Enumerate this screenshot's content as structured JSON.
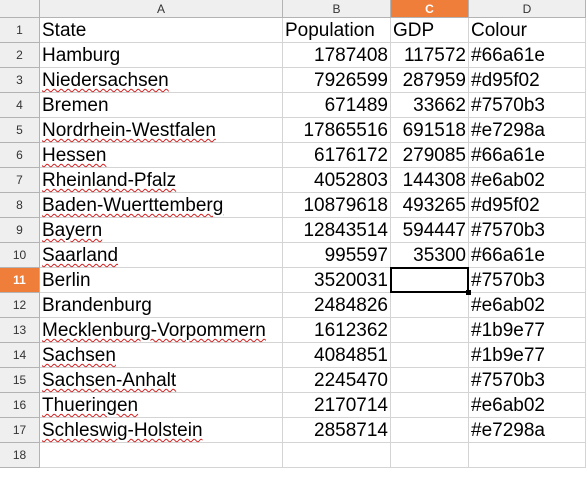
{
  "columns": [
    "A",
    "B",
    "C",
    "D"
  ],
  "selected_column": "C",
  "rows": [
    "1",
    "2",
    "3",
    "4",
    "5",
    "6",
    "7",
    "8",
    "9",
    "10",
    "11",
    "12",
    "13",
    "14",
    "15",
    "16",
    "17",
    "18"
  ],
  "selected_row": "11",
  "header": {
    "state": "State",
    "population": "Population",
    "gdp": "GDP",
    "colour": "Colour"
  },
  "data": [
    {
      "state": "Hamburg",
      "population": "1787408",
      "gdp": "117572",
      "colour": "#66a61e"
    },
    {
      "state": "Niedersachsen",
      "population": "7926599",
      "gdp": "287959",
      "colour": "#d95f02"
    },
    {
      "state": "Bremen",
      "population": "671489",
      "gdp": "33662",
      "colour": "#7570b3"
    },
    {
      "state": "Nordrhein-Westfalen",
      "population": "17865516",
      "gdp": "691518",
      "colour": "#e7298a"
    },
    {
      "state": "Hessen",
      "population": "6176172",
      "gdp": "279085",
      "colour": "#66a61e"
    },
    {
      "state": "Rheinland-Pfalz",
      "population": "4052803",
      "gdp": "144308",
      "colour": "#e6ab02"
    },
    {
      "state": "Baden-Wuerttemberg",
      "population": "10879618",
      "gdp": "493265",
      "colour": "#d95f02"
    },
    {
      "state": "Bayern",
      "population": "12843514",
      "gdp": "594447",
      "colour": "#7570b3"
    },
    {
      "state": "Saarland",
      "population": "995597",
      "gdp": "35300",
      "colour": "#66a61e"
    },
    {
      "state": "Berlin",
      "population": "3520031",
      "gdp": "",
      "colour": "#7570b3"
    },
    {
      "state": "Brandenburg",
      "population": "2484826",
      "gdp": "",
      "colour": "#e6ab02"
    },
    {
      "state": "Mecklenburg-Vorpommern",
      "population": "1612362",
      "gdp": "",
      "colour": "#1b9e77"
    },
    {
      "state": "Sachsen",
      "population": "4084851",
      "gdp": "",
      "colour": "#1b9e77"
    },
    {
      "state": "Sachsen-Anhalt",
      "population": "2245470",
      "gdp": "",
      "colour": "#7570b3"
    },
    {
      "state": "Thueringen",
      "population": "2170714",
      "gdp": "",
      "colour": "#e6ab02"
    },
    {
      "state": "Schleswig-Holstein",
      "population": "2858714",
      "gdp": "",
      "colour": "#e7298a"
    },
    {
      "state": "",
      "population": "",
      "gdp": "",
      "colour": ""
    }
  ],
  "spellcheck_flagged_states": [
    "Niedersachsen",
    "Nordrhein-Westfalen",
    "Hessen",
    "Rheinland-Pfalz",
    "Baden-Wuerttemberg",
    "Bayern",
    "Saarland",
    "Mecklenburg-Vorpommern",
    "Sachsen",
    "Sachsen-Anhalt",
    "Thueringen",
    "Schleswig-Holstein"
  ],
  "colors": {
    "header_bg": "#efefef",
    "selected_header_bg": "#f07e3b",
    "grid_line": "#d4d4d4",
    "spellcheck_underline": "#d02020"
  }
}
